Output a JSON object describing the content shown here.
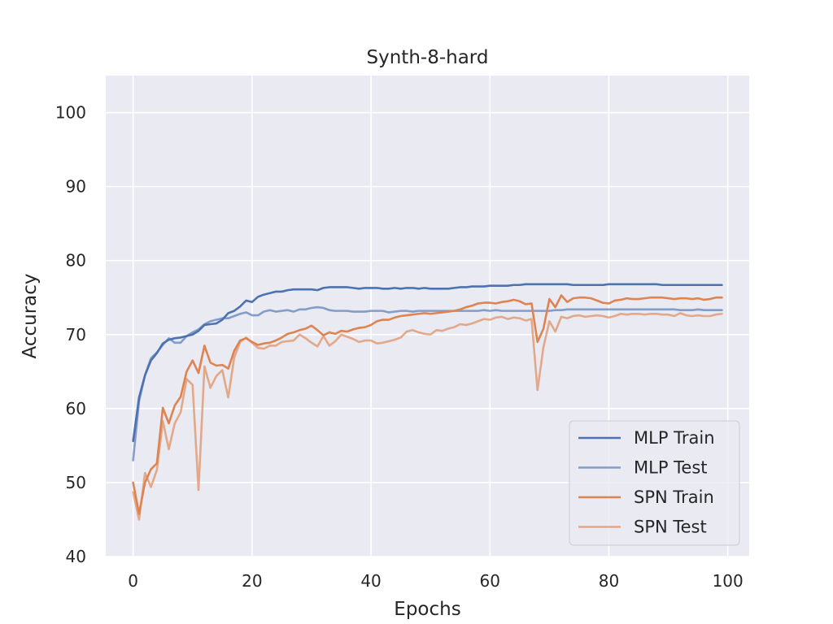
{
  "chart_data": {
    "type": "line",
    "title": "Synth-8-hard",
    "xlabel": "Epochs",
    "ylabel": "Accuracy",
    "xlim": [
      -4.6,
      103.6
    ],
    "ylim": [
      40,
      105
    ],
    "xticks": [
      0,
      20,
      40,
      60,
      80,
      100
    ],
    "yticks": [
      40,
      50,
      60,
      70,
      80,
      90,
      100
    ],
    "xtick_labels": [
      "0",
      "20",
      "40",
      "60",
      "80",
      "100"
    ],
    "ytick_labels": [
      "40",
      "50",
      "60",
      "70",
      "80",
      "90",
      "100"
    ],
    "grid": true,
    "legend_position": "lower-right",
    "background": "#EAEAF2",
    "series": [
      {
        "name": "MLP Train",
        "color": "#4C72B0",
        "opacity": 1.0,
        "x": [
          0,
          1,
          2,
          3,
          4,
          5,
          6,
          7,
          8,
          9,
          10,
          11,
          12,
          13,
          14,
          15,
          16,
          17,
          18,
          19,
          20,
          21,
          22,
          23,
          24,
          25,
          26,
          27,
          28,
          29,
          30,
          31,
          32,
          33,
          34,
          35,
          36,
          37,
          38,
          39,
          40,
          41,
          42,
          43,
          44,
          45,
          46,
          47,
          48,
          49,
          50,
          51,
          52,
          53,
          54,
          55,
          56,
          57,
          58,
          59,
          60,
          61,
          62,
          63,
          64,
          65,
          66,
          67,
          68,
          69,
          70,
          71,
          72,
          73,
          74,
          75,
          76,
          77,
          78,
          79,
          80,
          81,
          82,
          83,
          84,
          85,
          86,
          87,
          88,
          89,
          90,
          91,
          92,
          93,
          94,
          95,
          96,
          97,
          98,
          99
        ],
        "values": [
          55.6,
          61.5,
          64.5,
          66.5,
          67.5,
          68.8,
          69.3,
          69.5,
          69.6,
          69.8,
          70.0,
          70.5,
          71.3,
          71.4,
          71.5,
          72.0,
          72.9,
          73.2,
          73.8,
          74.6,
          74.4,
          75.1,
          75.4,
          75.6,
          75.8,
          75.8,
          76.0,
          76.1,
          76.1,
          76.1,
          76.1,
          76.0,
          76.3,
          76.4,
          76.4,
          76.4,
          76.4,
          76.3,
          76.2,
          76.3,
          76.3,
          76.3,
          76.2,
          76.2,
          76.3,
          76.2,
          76.3,
          76.3,
          76.2,
          76.3,
          76.2,
          76.2,
          76.2,
          76.2,
          76.3,
          76.4,
          76.4,
          76.5,
          76.5,
          76.5,
          76.6,
          76.6,
          76.6,
          76.6,
          76.7,
          76.7,
          76.8,
          76.8,
          76.8,
          76.8,
          76.8,
          76.8,
          76.8,
          76.8,
          76.7,
          76.7,
          76.7,
          76.7,
          76.7,
          76.7,
          76.8,
          76.8,
          76.8,
          76.8,
          76.8,
          76.8,
          76.8,
          76.8,
          76.8,
          76.7,
          76.7,
          76.7,
          76.7,
          76.7,
          76.7,
          76.7,
          76.7,
          76.7,
          76.7,
          76.7
        ]
      },
      {
        "name": "MLP Test",
        "color": "#4C72B0",
        "opacity": 0.65,
        "x": [
          0,
          1,
          2,
          3,
          4,
          5,
          6,
          7,
          8,
          9,
          10,
          11,
          12,
          13,
          14,
          15,
          16,
          17,
          18,
          19,
          20,
          21,
          22,
          23,
          24,
          25,
          26,
          27,
          28,
          29,
          30,
          31,
          32,
          33,
          34,
          35,
          36,
          37,
          38,
          39,
          40,
          41,
          42,
          43,
          44,
          45,
          46,
          47,
          48,
          49,
          50,
          51,
          52,
          53,
          54,
          55,
          56,
          57,
          58,
          59,
          60,
          61,
          62,
          63,
          64,
          65,
          66,
          67,
          68,
          69,
          70,
          71,
          72,
          73,
          74,
          75,
          76,
          77,
          78,
          79,
          80,
          81,
          82,
          83,
          84,
          85,
          86,
          87,
          88,
          89,
          90,
          91,
          92,
          93,
          94,
          95,
          96,
          97,
          98,
          99
        ],
        "values": [
          53.0,
          61.0,
          64.5,
          66.8,
          67.6,
          68.6,
          69.5,
          68.9,
          68.9,
          69.8,
          70.3,
          70.7,
          71.4,
          71.8,
          72.0,
          72.2,
          72.2,
          72.5,
          72.8,
          73.0,
          72.6,
          72.6,
          73.1,
          73.3,
          73.1,
          73.2,
          73.3,
          73.1,
          73.4,
          73.4,
          73.6,
          73.7,
          73.6,
          73.3,
          73.2,
          73.2,
          73.2,
          73.1,
          73.1,
          73.1,
          73.2,
          73.2,
          73.2,
          73.0,
          73.1,
          73.2,
          73.2,
          73.1,
          73.2,
          73.2,
          73.2,
          73.2,
          73.2,
          73.2,
          73.2,
          73.2,
          73.2,
          73.2,
          73.2,
          73.3,
          73.2,
          73.3,
          73.2,
          73.2,
          73.2,
          73.2,
          73.2,
          73.2,
          73.2,
          73.2,
          73.2,
          73.3,
          73.3,
          73.4,
          73.4,
          73.4,
          73.4,
          73.4,
          73.4,
          73.4,
          73.4,
          73.4,
          73.4,
          73.4,
          73.4,
          73.4,
          73.4,
          73.4,
          73.4,
          73.4,
          73.4,
          73.4,
          73.3,
          73.3,
          73.3,
          73.4,
          73.3,
          73.3,
          73.3,
          73.3
        ]
      },
      {
        "name": "SPN Train",
        "color": "#DD8452",
        "opacity": 1.0,
        "x": [
          0,
          1,
          2,
          3,
          4,
          5,
          6,
          7,
          8,
          9,
          10,
          11,
          12,
          13,
          14,
          15,
          16,
          17,
          18,
          19,
          20,
          21,
          22,
          23,
          24,
          25,
          26,
          27,
          28,
          29,
          30,
          31,
          32,
          33,
          34,
          35,
          36,
          37,
          38,
          39,
          40,
          41,
          42,
          43,
          44,
          45,
          46,
          47,
          48,
          49,
          50,
          51,
          52,
          53,
          54,
          55,
          56,
          57,
          58,
          59,
          60,
          61,
          62,
          63,
          64,
          65,
          66,
          67,
          68,
          69,
          70,
          71,
          72,
          73,
          74,
          75,
          76,
          77,
          78,
          79,
          80,
          81,
          82,
          83,
          84,
          85,
          86,
          87,
          88,
          89,
          90,
          91,
          92,
          93,
          94,
          95,
          96,
          97,
          98,
          99
        ],
        "values": [
          50.0,
          45.8,
          50.0,
          51.8,
          52.6,
          60.1,
          58.0,
          60.4,
          61.6,
          65.0,
          66.5,
          64.8,
          68.5,
          66.2,
          65.8,
          65.9,
          65.4,
          67.8,
          69.2,
          69.5,
          69.0,
          68.6,
          68.8,
          68.9,
          69.2,
          69.6,
          70.1,
          70.3,
          70.6,
          70.8,
          71.2,
          70.6,
          69.9,
          70.3,
          70.1,
          70.5,
          70.4,
          70.7,
          70.9,
          71.0,
          71.3,
          71.8,
          72.0,
          72.0,
          72.3,
          72.5,
          72.6,
          72.7,
          72.8,
          72.9,
          72.8,
          72.9,
          73.0,
          73.1,
          73.2,
          73.4,
          73.7,
          73.9,
          74.2,
          74.3,
          74.3,
          74.2,
          74.4,
          74.5,
          74.7,
          74.5,
          74.1,
          74.2,
          69.0,
          70.8,
          74.8,
          73.7,
          75.3,
          74.4,
          74.9,
          75.0,
          75.0,
          74.9,
          74.6,
          74.3,
          74.2,
          74.6,
          74.7,
          74.9,
          74.8,
          74.8,
          74.9,
          75.0,
          75.0,
          75.0,
          74.9,
          74.8,
          74.9,
          74.9,
          74.8,
          74.9,
          74.7,
          74.8,
          75.0,
          75.0
        ]
      },
      {
        "name": "SPN Test",
        "color": "#DD8452",
        "opacity": 0.65,
        "x": [
          0,
          1,
          2,
          3,
          4,
          5,
          6,
          7,
          8,
          9,
          10,
          11,
          12,
          13,
          14,
          15,
          16,
          17,
          18,
          19,
          20,
          21,
          22,
          23,
          24,
          25,
          26,
          27,
          28,
          29,
          30,
          31,
          32,
          33,
          34,
          35,
          36,
          37,
          38,
          39,
          40,
          41,
          42,
          43,
          44,
          45,
          46,
          47,
          48,
          49,
          50,
          51,
          52,
          53,
          54,
          55,
          56,
          57,
          58,
          59,
          60,
          61,
          62,
          63,
          64,
          65,
          66,
          67,
          68,
          69,
          70,
          71,
          72,
          73,
          74,
          75,
          76,
          77,
          78,
          79,
          80,
          81,
          82,
          83,
          84,
          85,
          86,
          87,
          88,
          89,
          90,
          91,
          92,
          93,
          94,
          95,
          96,
          97,
          98,
          99
        ],
        "values": [
          48.7,
          45.0,
          51.3,
          49.4,
          51.7,
          58.3,
          54.5,
          58.0,
          59.5,
          64.0,
          63.2,
          49.0,
          65.7,
          62.8,
          64.4,
          65.2,
          61.5,
          66.9,
          69.0,
          69.6,
          68.9,
          68.2,
          68.1,
          68.5,
          68.5,
          69.0,
          69.1,
          69.2,
          70.0,
          69.5,
          68.9,
          68.4,
          69.8,
          68.5,
          69.1,
          70.0,
          69.7,
          69.4,
          69.0,
          69.2,
          69.2,
          68.8,
          68.9,
          69.1,
          69.3,
          69.6,
          70.4,
          70.6,
          70.3,
          70.1,
          70.0,
          70.6,
          70.5,
          70.8,
          71.0,
          71.4,
          71.3,
          71.5,
          71.8,
          72.1,
          72.0,
          72.3,
          72.4,
          72.1,
          72.3,
          72.2,
          71.9,
          72.1,
          62.5,
          68.3,
          71.8,
          70.4,
          72.4,
          72.2,
          72.5,
          72.6,
          72.4,
          72.5,
          72.6,
          72.5,
          72.3,
          72.5,
          72.8,
          72.7,
          72.8,
          72.8,
          72.7,
          72.8,
          72.8,
          72.7,
          72.7,
          72.5,
          72.9,
          72.6,
          72.5,
          72.6,
          72.5,
          72.5,
          72.7,
          72.8
        ]
      }
    ]
  }
}
